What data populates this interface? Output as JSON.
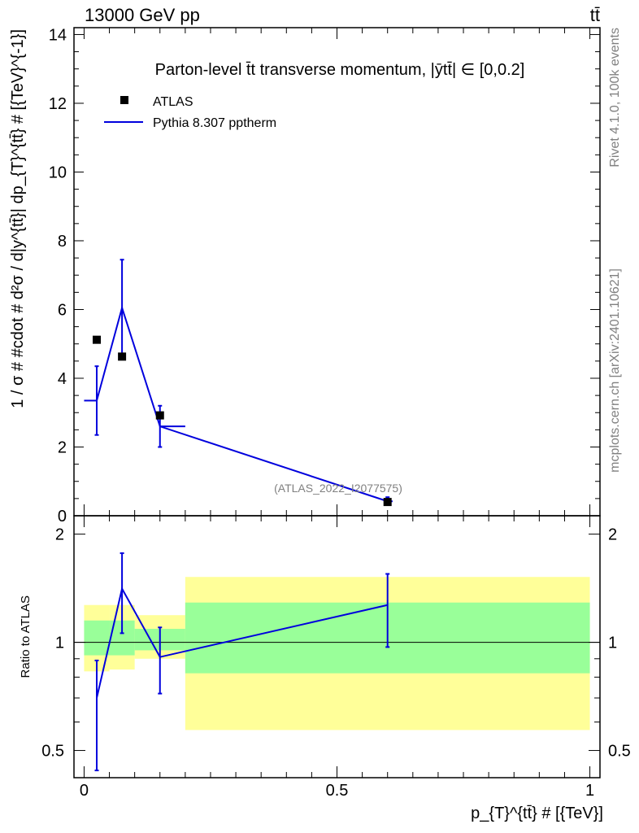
{
  "header": {
    "left": "13000 GeV pp",
    "right": "tt̄"
  },
  "side_text": {
    "rivet": "Rivet 4.1.0,  100k events",
    "mcplots": "mcplots.cern.ch [arXiv:2401.10621]"
  },
  "colors": {
    "mc": "#0000dd",
    "data": "#000000",
    "band_inner": "#99ff99",
    "band_outer": "#ffff99"
  },
  "chart_data": [
    {
      "panel": "main",
      "type": "scatter",
      "title": "Parton-level t̄t transverse momentum, |ȳtt̄| ∈ [0,0.2]",
      "ylabel": "1 / σ # #cdot # d²σ / d|y̅tt̅| dp_{T}ⁿtt̅ # [{TeV}⁻¹]",
      "ylabel_display": "1 / σ # #cdot # d²σ / d|y^{tt̄}| dp_{T}^{tt̄} # [{TeV}^{-1}]",
      "xlim": [
        -0.02,
        1.02
      ],
      "ylim": [
        0,
        14.2
      ],
      "yticks": [
        0,
        2,
        4,
        6,
        8,
        10,
        12,
        14
      ],
      "yticklabels": [
        "0",
        "2",
        "4",
        "6",
        "8",
        "10",
        "12",
        "14"
      ],
      "legend": [
        {
          "label": "ATLAS",
          "kind": "marker"
        },
        {
          "label": "Pythia 8.307 pptherm",
          "kind": "line"
        }
      ],
      "watermark": "(ATLAS_2022_I2077575)",
      "series": [
        {
          "name": "ATLAS",
          "x": [
            0.025,
            0.075,
            0.15,
            0.6
          ],
          "y": [
            5.12,
            4.63,
            2.92,
            0.4
          ]
        },
        {
          "name": "Pythia 8.307 pptherm",
          "x": [
            0.025,
            0.075,
            0.15,
            0.6
          ],
          "y": [
            3.35,
            6.05,
            2.6,
            0.42
          ],
          "yerr_low": [
            1.0,
            1.4,
            0.6,
            0.08
          ],
          "yerr_high": [
            1.0,
            1.4,
            0.6,
            0.12
          ],
          "steps": [
            {
              "x0": 0.0,
              "x1": 0.025,
              "y": 3.35
            },
            {
              "x0": 0.15,
              "x1": 0.2,
              "y": 2.6
            },
            {
              "x0": 0.6,
              "x1": 0.61,
              "y": 0.42
            }
          ]
        }
      ]
    },
    {
      "panel": "ratio",
      "type": "line",
      "xlabel": "p_{T}^{tt̄} # [{TeV}]",
      "ylabel": "Ratio to ATLAS",
      "xlim": [
        -0.02,
        1.02
      ],
      "ylim": [
        0.42,
        2.25
      ],
      "xticks": [
        0,
        0.5,
        1
      ],
      "xticklabels": [
        "0",
        "0.5",
        "1"
      ],
      "yticks": [
        0.5,
        1,
        2
      ],
      "yticklabels": [
        "0.5",
        "1",
        "2"
      ],
      "bands": [
        {
          "x0": 0.0,
          "x1": 0.05,
          "outer": [
            0.83,
            1.27
          ],
          "inner": [
            0.92,
            1.15
          ]
        },
        {
          "x0": 0.05,
          "x1": 0.1,
          "outer": [
            0.84,
            1.27
          ],
          "inner": [
            0.92,
            1.15
          ]
        },
        {
          "x0": 0.1,
          "x1": 0.2,
          "outer": [
            0.9,
            1.19
          ],
          "inner": [
            0.95,
            1.09
          ]
        },
        {
          "x0": 0.2,
          "x1": 1.0,
          "outer": [
            0.57,
            1.52
          ],
          "inner": [
            0.82,
            1.29
          ]
        }
      ],
      "series": [
        {
          "name": "Pythia 8.307 pptherm",
          "x": [
            0.025,
            0.075,
            0.15,
            0.6
          ],
          "y": [
            0.7,
            1.41,
            0.91,
            1.27
          ],
          "yerr_low": [
            0.26,
            0.35,
            0.19,
            0.3
          ],
          "yerr_high": [
            0.19,
            0.36,
            0.19,
            0.28
          ]
        }
      ]
    }
  ]
}
